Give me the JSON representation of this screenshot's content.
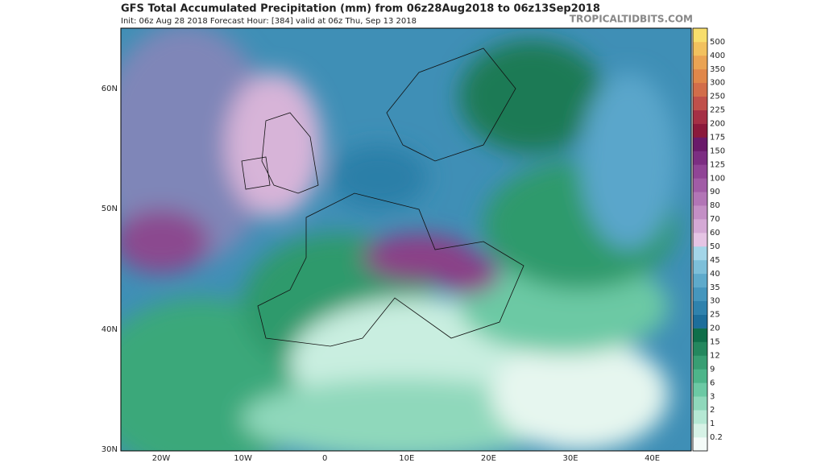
{
  "header": {
    "title": "GFS Total Accumulated Precipitation (mm) from 06z28Aug2018 to 06z13Sep2018",
    "subtitle": "Init: 06z Aug 28 2018   Forecast Hour: [384]   valid at 06z Thu, Sep 13 2018",
    "watermark": "TROPICALTIDBITS.COM"
  },
  "map": {
    "lat_labels": [
      "60N",
      "50N",
      "40N",
      "30N"
    ],
    "lon_labels": [
      "20W",
      "10W",
      "0",
      "10E",
      "20E",
      "30E",
      "40E"
    ]
  },
  "colorbar": {
    "labels": [
      0.2,
      1,
      2,
      3,
      6,
      9,
      12,
      15,
      20,
      25,
      30,
      35,
      40,
      45,
      50,
      60,
      70,
      80,
      90,
      100,
      125,
      150,
      175,
      200,
      225,
      250,
      300,
      350,
      400,
      500
    ],
    "colors": [
      "#f4fbf8",
      "#d6f2e6",
      "#b5e8d4",
      "#8fd8bb",
      "#6cc9a4",
      "#4db58a",
      "#389e73",
      "#24875e",
      "#0f6f4a",
      "#1d6e9b",
      "#2f82ad",
      "#4596bd",
      "#5eaacb",
      "#7dbfd9",
      "#a3d5e8",
      "#e5c4e4",
      "#d4a9d5",
      "#c38fc5",
      "#b275b6",
      "#a15ca6",
      "#904596",
      "#7c2e82",
      "#6a1a6a",
      "#8b1a3c",
      "#a53045",
      "#c0504a",
      "#d26d4a",
      "#e0874a",
      "#eaa353",
      "#f2c15e",
      "#f8de6c"
    ]
  }
}
